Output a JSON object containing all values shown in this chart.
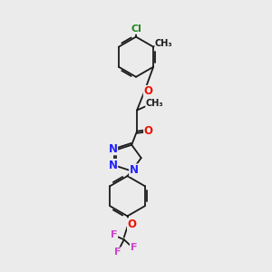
{
  "bg_color": "#ebebeb",
  "bond_color": "#1a1a1a",
  "atom_colors": {
    "O": "#ee1100",
    "N": "#2222ff",
    "Cl": "#228822",
    "F": "#cc44cc",
    "C": "#1a1a1a"
  },
  "lw": 1.3
}
